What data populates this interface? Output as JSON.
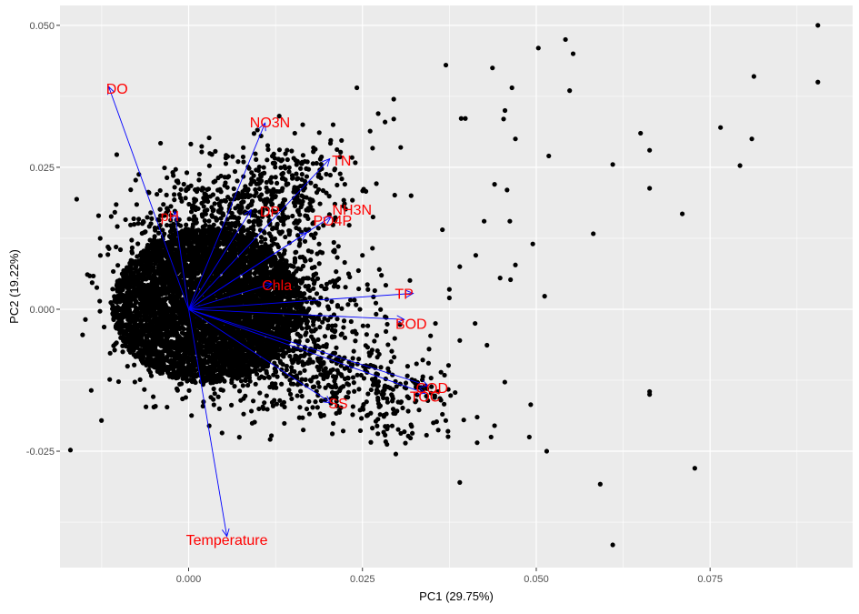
{
  "chart_data": {
    "type": "scatter",
    "subtype": "pca-biplot",
    "title": "",
    "xlabel": "PC1 (29.75%)",
    "ylabel": "PC2 (19.22%)",
    "xlim": [
      -0.0185,
      0.0955
    ],
    "ylim": [
      -0.0455,
      0.0535
    ],
    "x_ticks": [
      0.0,
      0.025,
      0.05,
      0.075
    ],
    "x_tick_labels": [
      "0.000",
      "0.025",
      "0.050",
      "0.075"
    ],
    "y_ticks": [
      -0.025,
      0.0,
      0.025,
      0.05
    ],
    "y_tick_labels": [
      "-0.025",
      "0.000",
      "0.025",
      "0.050"
    ],
    "grid": true,
    "legend": "none",
    "colors": {
      "panel_background": "#ebebeb",
      "grid_major": "#ffffff",
      "points": "#000000",
      "arrows": "#0000ff",
      "variable_labels": "#ff0000"
    },
    "dense_cloud_description": "Thousands of observations forming a dense elliptical cloud centred near PC1 0.000 to 0.005 and PC2 0.000; the outlying individual points are listed below.",
    "points": [
      {
        "x": 0.0905,
        "y": 0.05
      },
      {
        "x": 0.0905,
        "y": 0.04
      },
      {
        "x": 0.0813,
        "y": 0.041
      },
      {
        "x": 0.081,
        "y": 0.03
      },
      {
        "x": 0.0793,
        "y": 0.0253
      },
      {
        "x": 0.0765,
        "y": 0.032
      },
      {
        "x": 0.071,
        "y": 0.0168
      },
      {
        "x": 0.0663,
        "y": 0.028
      },
      {
        "x": 0.0663,
        "y": 0.0213
      },
      {
        "x": 0.065,
        "y": 0.031
      },
      {
        "x": 0.061,
        "y": 0.0255
      },
      {
        "x": 0.0582,
        "y": 0.0133
      },
      {
        "x": 0.0553,
        "y": 0.045
      },
      {
        "x": 0.0548,
        "y": 0.0385
      },
      {
        "x": 0.0542,
        "y": 0.0475
      },
      {
        "x": 0.0518,
        "y": 0.027
      },
      {
        "x": 0.0503,
        "y": 0.046
      },
      {
        "x": 0.0512,
        "y": 0.0023
      },
      {
        "x": 0.047,
        "y": 0.03
      },
      {
        "x": 0.0465,
        "y": 0.039
      },
      {
        "x": 0.0437,
        "y": 0.0425
      },
      {
        "x": 0.0398,
        "y": 0.0336
      },
      {
        "x": 0.0392,
        "y": 0.0336
      },
      {
        "x": 0.037,
        "y": 0.043
      },
      {
        "x": 0.0455,
        "y": 0.035
      },
      {
        "x": 0.0453,
        "y": 0.0335
      },
      {
        "x": 0.044,
        "y": 0.022
      },
      {
        "x": 0.0458,
        "y": 0.021
      },
      {
        "x": 0.0425,
        "y": 0.0155
      },
      {
        "x": 0.0462,
        "y": 0.0155
      },
      {
        "x": 0.0495,
        "y": 0.0115
      },
      {
        "x": 0.047,
        "y": 0.0078
      },
      {
        "x": 0.0448,
        "y": 0.0055
      },
      {
        "x": 0.0463,
        "y": 0.0052
      },
      {
        "x": 0.0413,
        "y": 0.0095
      },
      {
        "x": 0.039,
        "y": 0.0075
      },
      {
        "x": 0.0375,
        "y": 0.0035
      },
      {
        "x": 0.0412,
        "y": -0.0025
      },
      {
        "x": 0.039,
        "y": -0.0055
      },
      {
        "x": 0.0355,
        "y": -0.0025
      },
      {
        "x": 0.0345,
        "y": -0.0095
      },
      {
        "x": 0.034,
        "y": -0.0135
      },
      {
        "x": 0.0365,
        "y": -0.0185
      },
      {
        "x": 0.0415,
        "y": -0.019
      },
      {
        "x": 0.044,
        "y": -0.0205
      },
      {
        "x": 0.0415,
        "y": -0.0235
      },
      {
        "x": 0.0435,
        "y": -0.0225
      },
      {
        "x": 0.049,
        "y": -0.0225
      },
      {
        "x": 0.0515,
        "y": -0.025
      },
      {
        "x": 0.0492,
        "y": -0.0168
      },
      {
        "x": 0.0663,
        "y": -0.0145
      },
      {
        "x": 0.0663,
        "y": -0.015
      },
      {
        "x": 0.0592,
        "y": -0.0308
      },
      {
        "x": 0.061,
        "y": -0.0415
      },
      {
        "x": 0.0728,
        "y": -0.028
      },
      {
        "x": 0.039,
        "y": -0.0305
      },
      {
        "x": 0.0298,
        "y": -0.0255
      },
      {
        "x": -0.017,
        "y": -0.0248
      },
      {
        "x": 0.0295,
        "y": 0.0335
      },
      {
        "x": 0.032,
        "y": 0.02
      },
      {
        "x": 0.0375,
        "y": 0.002
      },
      {
        "x": 0.0305,
        "y": 0.0285
      },
      {
        "x": 0.0295,
        "y": 0.037
      },
      {
        "x": 0.0242,
        "y": 0.039
      },
      {
        "x": 0.0365,
        "y": 0.014
      },
      {
        "x": 0.0352,
        "y": -0.02
      }
    ],
    "loadings": [
      {
        "name": "DO",
        "x": -0.0115,
        "y": 0.0392
      },
      {
        "name": "NO3N",
        "x": 0.011,
        "y": 0.0328
      },
      {
        "name": "TN",
        "x": 0.0203,
        "y": 0.0265
      },
      {
        "name": "pH",
        "x": -0.002,
        "y": 0.0172
      },
      {
        "name": "DP",
        "x": 0.009,
        "y": 0.0175
      },
      {
        "name": "NH3N",
        "x": 0.0205,
        "y": 0.0163
      },
      {
        "name": "PO4P",
        "x": 0.017,
        "y": 0.0135
      },
      {
        "name": "Chla",
        "x": 0.012,
        "y": 0.0045
      },
      {
        "name": "TP",
        "x": 0.0323,
        "y": 0.0028
      },
      {
        "name": "BOD",
        "x": 0.031,
        "y": -0.0018
      },
      {
        "name": "COD",
        "x": 0.0345,
        "y": -0.0135
      },
      {
        "name": "TOC",
        "x": 0.034,
        "y": -0.0148
      },
      {
        "name": "SS",
        "x": 0.0205,
        "y": -0.0165
      },
      {
        "name": "Temperature",
        "x": 0.0055,
        "y": -0.04
      }
    ],
    "labels": [
      {
        "text": "DO",
        "x": -0.0103,
        "y": 0.0389
      },
      {
        "text": "NO3N",
        "x": 0.0117,
        "y": 0.033
      },
      {
        "text": "TN",
        "x": 0.022,
        "y": 0.0263
      },
      {
        "text": "pH",
        "x": -0.0027,
        "y": 0.0165
      },
      {
        "text": "DP",
        "x": 0.0117,
        "y": 0.0173
      },
      {
        "text": "NH3N",
        "x": 0.0235,
        "y": 0.0176
      },
      {
        "text": "PO4P",
        "x": 0.0207,
        "y": 0.0157
      },
      {
        "text": "Chla",
        "x": 0.0127,
        "y": 0.0043
      },
      {
        "text": "TP",
        "x": 0.031,
        "y": 0.0028
      },
      {
        "text": "BOD",
        "x": 0.032,
        "y": -0.0025
      },
      {
        "text": "COD",
        "x": 0.035,
        "y": -0.0138
      },
      {
        "text": "TOC",
        "x": 0.034,
        "y": -0.0153
      },
      {
        "text": "SS",
        "x": 0.0215,
        "y": -0.0165
      },
      {
        "text": "Temperature",
        "x": 0.0055,
        "y": -0.0405
      }
    ]
  }
}
